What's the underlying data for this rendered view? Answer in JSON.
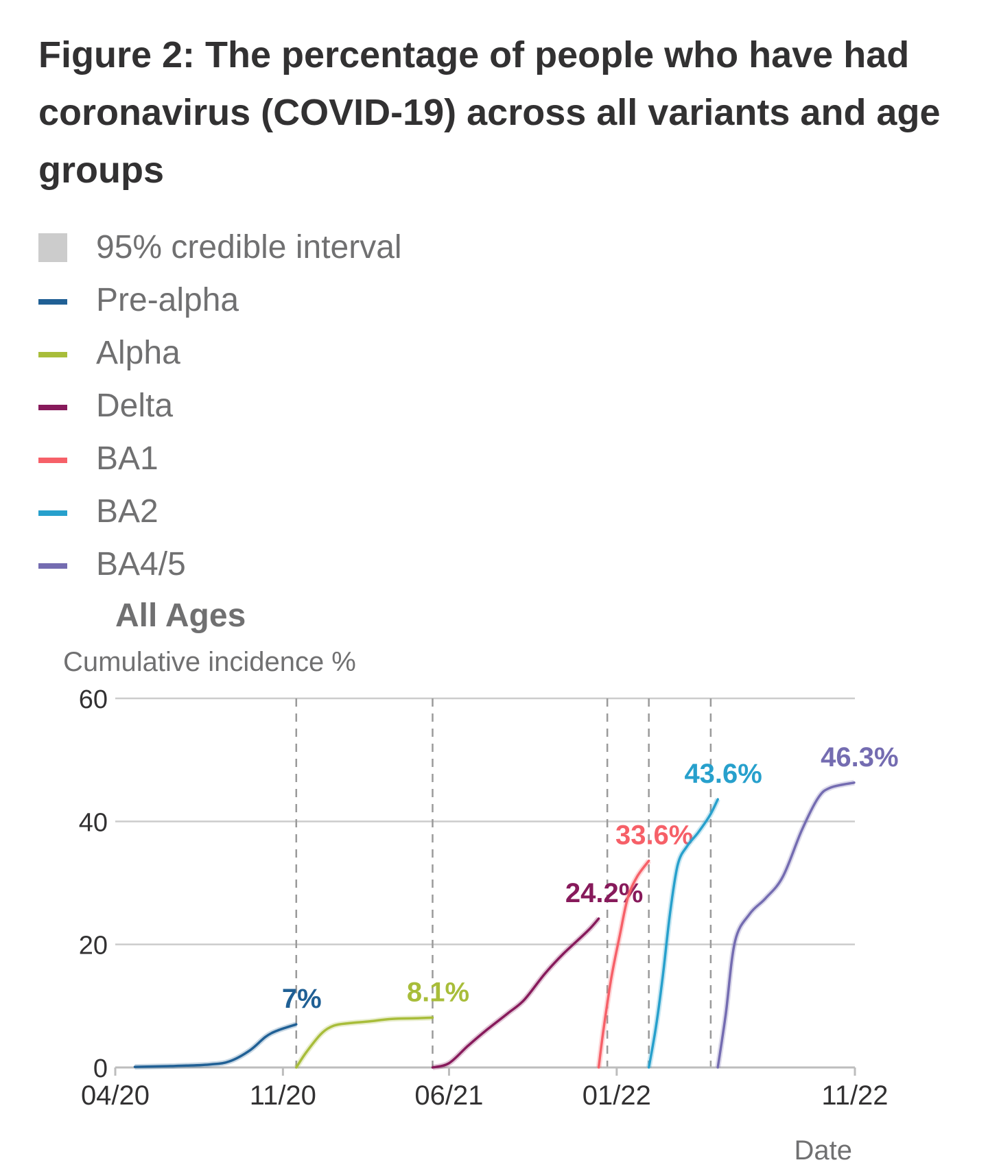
{
  "title": "Figure 2: The percentage of people who have had coronavirus (COVID-19) across all variants and age groups",
  "legend": {
    "interval_label": "95% credible interval",
    "interval_color": "#cccccc"
  },
  "chart_data": {
    "type": "line",
    "panel_title": "All Ages",
    "ylabel": "Cumulative incidence %",
    "xlabel": "Date",
    "ylim": [
      0,
      60
    ],
    "yticks": [
      "0",
      "20",
      "40",
      "60"
    ],
    "xticks": [
      {
        "label": "04/20",
        "date": "2020-04-01"
      },
      {
        "label": "11/20",
        "date": "2020-11-01"
      },
      {
        "label": "06/21",
        "date": "2021-06-01"
      },
      {
        "label": "01/22",
        "date": "2022-01-01"
      },
      {
        "label": "11/22",
        "date": "2022-11-01"
      }
    ],
    "xlim": [
      "2020-04-01",
      "2022-11-01"
    ],
    "grid": true,
    "period_markers": [
      "2020-11-18",
      "2021-05-11",
      "2021-12-20",
      "2022-02-11",
      "2022-05-01"
    ],
    "series": [
      {
        "name": "Pre-alpha",
        "color": "#206095",
        "end_label": "7%",
        "points": [
          [
            "2020-04-26",
            0.1
          ],
          [
            "2020-06-01",
            0.2
          ],
          [
            "2020-07-01",
            0.3
          ],
          [
            "2020-08-01",
            0.5
          ],
          [
            "2020-08-25",
            1.0
          ],
          [
            "2020-09-20",
            2.8
          ],
          [
            "2020-10-10",
            5.0
          ],
          [
            "2020-10-25",
            6.0
          ],
          [
            "2020-11-18",
            7.0
          ]
        ]
      },
      {
        "name": "Alpha",
        "color": "#a8bd3a",
        "end_label": "8.1%",
        "points": [
          [
            "2020-11-18",
            0
          ],
          [
            "2020-12-01",
            2.5
          ],
          [
            "2020-12-20",
            5.5
          ],
          [
            "2021-01-05",
            6.8
          ],
          [
            "2021-01-25",
            7.2
          ],
          [
            "2021-02-20",
            7.5
          ],
          [
            "2021-03-20",
            7.9
          ],
          [
            "2021-04-20",
            8.0
          ],
          [
            "2021-05-11",
            8.1
          ]
        ]
      },
      {
        "name": "Delta",
        "color": "#871a5b",
        "end_label": "24.2%",
        "points": [
          [
            "2021-05-11",
            0
          ],
          [
            "2021-06-01",
            0.7
          ],
          [
            "2021-06-25",
            3.5
          ],
          [
            "2021-07-20",
            6.2
          ],
          [
            "2021-08-15",
            8.8
          ],
          [
            "2021-09-05",
            11.0
          ],
          [
            "2021-10-01",
            15.2
          ],
          [
            "2021-10-25",
            18.5
          ],
          [
            "2021-11-25",
            22.2
          ],
          [
            "2021-12-09",
            24.2
          ]
        ]
      },
      {
        "name": "BA1",
        "color": "#f66068",
        "end_label": "33.6%",
        "points": [
          [
            "2021-12-09",
            0
          ],
          [
            "2021-12-15",
            6.0
          ],
          [
            "2021-12-25",
            14.5
          ],
          [
            "2022-01-05",
            21.5
          ],
          [
            "2022-01-15",
            27.5
          ],
          [
            "2022-01-27",
            31.0
          ],
          [
            "2022-02-11",
            33.6
          ]
        ]
      },
      {
        "name": "BA2",
        "color": "#27a0cc",
        "end_label": "43.6%",
        "points": [
          [
            "2022-02-11",
            0
          ],
          [
            "2022-02-20",
            6.5
          ],
          [
            "2022-03-01",
            15.0
          ],
          [
            "2022-03-10",
            25.0
          ],
          [
            "2022-03-20",
            33.0
          ],
          [
            "2022-04-01",
            36.0
          ],
          [
            "2022-04-15",
            38.2
          ],
          [
            "2022-04-30",
            41.0
          ],
          [
            "2022-05-10",
            43.6
          ]
        ]
      },
      {
        "name": "BA4/5",
        "color": "#746cb1",
        "end_label": "46.3%",
        "points": [
          [
            "2022-05-10",
            0
          ],
          [
            "2022-05-20",
            8.5
          ],
          [
            "2022-06-01",
            20.5
          ],
          [
            "2022-06-20",
            25.0
          ],
          [
            "2022-07-10",
            27.5
          ],
          [
            "2022-08-01",
            31.0
          ],
          [
            "2022-08-25",
            38.5
          ],
          [
            "2022-09-15",
            43.8
          ],
          [
            "2022-10-01",
            45.5
          ],
          [
            "2022-10-31",
            46.3
          ]
        ]
      }
    ]
  }
}
